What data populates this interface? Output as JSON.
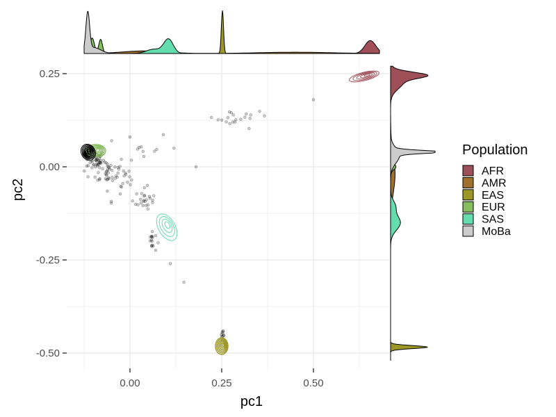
{
  "chart_data": {
    "type": "scatter",
    "title": "",
    "xlabel": "pc1",
    "ylabel": "pc2",
    "xlim": [
      -0.13,
      0.7
    ],
    "ylim": [
      -0.55,
      0.28
    ],
    "x_ticks": [
      {
        "value": 0.0,
        "label": "0.00"
      },
      {
        "value": 0.25,
        "label": "0.25"
      },
      {
        "value": 0.5,
        "label": "0.50"
      }
    ],
    "y_ticks": [
      {
        "value": 0.25,
        "label": "0.25"
      },
      {
        "value": 0.0,
        "label": "0.00"
      },
      {
        "value": -0.25,
        "label": "-0.25"
      },
      {
        "value": -0.5,
        "label": "-0.50"
      }
    ],
    "grid": true,
    "legend": {
      "title": "Population",
      "placement": "right",
      "entries": [
        {
          "label": "AFR",
          "color": "#9e4f57"
        },
        {
          "label": "AMR",
          "color": "#a0702c"
        },
        {
          "label": "EAS",
          "color": "#9c9726"
        },
        {
          "label": "EUR",
          "color": "#86bd5d"
        },
        {
          "label": "SAS",
          "color": "#63ddae"
        },
        {
          "label": "MoBa",
          "color": "#cccccc"
        }
      ]
    },
    "marginal_x": [
      {
        "population": "AFR",
        "peaks": [
          {
            "center": 0.655,
            "sd": 0.015,
            "height": 0.3
          }
        ]
      },
      {
        "population": "AMR",
        "peaks": [
          {
            "center": 0.04,
            "sd": 0.06,
            "height": 0.06
          },
          {
            "center": 0.45,
            "sd": 0.1,
            "height": 0.03
          }
        ]
      },
      {
        "population": "EAS",
        "peaks": [
          {
            "center": 0.252,
            "sd": 0.003,
            "height": 1.0
          }
        ]
      },
      {
        "population": "EUR",
        "peaks": [
          {
            "center": -0.103,
            "sd": 0.006,
            "height": 0.36
          },
          {
            "center": -0.08,
            "sd": 0.005,
            "height": 0.33
          }
        ]
      },
      {
        "population": "SAS",
        "peaks": [
          {
            "center": 0.105,
            "sd": 0.013,
            "height": 0.33
          },
          {
            "center": 0.065,
            "sd": 0.02,
            "height": 0.1
          }
        ]
      },
      {
        "population": "MoBa",
        "peaks": [
          {
            "center": -0.115,
            "sd": 0.005,
            "height": 0.88
          },
          {
            "center": -0.1,
            "sd": 0.02,
            "height": 0.14
          }
        ]
      }
    ],
    "marginal_y": [
      {
        "population": "AFR",
        "peaks": [
          {
            "center": 0.246,
            "sd": 0.008,
            "height": 0.62
          },
          {
            "center": 0.23,
            "sd": 0.02,
            "height": 0.3
          }
        ]
      },
      {
        "population": "AMR",
        "peaks": [
          {
            "center": -0.02,
            "sd": 0.05,
            "height": 0.1
          }
        ]
      },
      {
        "population": "EAS",
        "peaks": [
          {
            "center": -0.484,
            "sd": 0.004,
            "height": 0.83
          }
        ]
      },
      {
        "population": "EUR",
        "peaks": [
          {
            "center": 0.038,
            "sd": 0.005,
            "height": 0.52
          },
          {
            "center": 0.0,
            "sd": 0.008,
            "height": 0.12
          }
        ]
      },
      {
        "population": "SAS",
        "peaks": [
          {
            "center": -0.15,
            "sd": 0.02,
            "height": 0.22
          },
          {
            "center": -0.105,
            "sd": 0.015,
            "height": 0.1
          }
        ]
      },
      {
        "population": "MoBa",
        "peaks": [
          {
            "center": 0.04,
            "sd": 0.004,
            "height": 1.0
          },
          {
            "center": 0.03,
            "sd": 0.02,
            "height": 0.2
          }
        ]
      }
    ]
  }
}
